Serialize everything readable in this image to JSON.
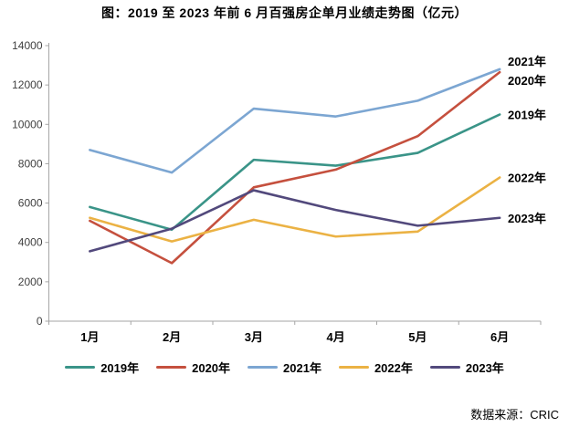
{
  "chart_data": {
    "type": "line",
    "title": "图：2019 至 2023 年前 6 月百强房企单月业绩走势图（亿元）",
    "categories": [
      "1月",
      "2月",
      "3月",
      "4月",
      "5月",
      "6月"
    ],
    "series": [
      {
        "name": "2019年",
        "color": "#3A9488",
        "values": [
          5800,
          4650,
          8200,
          7900,
          8550,
          10500
        ]
      },
      {
        "name": "2020年",
        "color": "#C5503E",
        "values": [
          5100,
          2950,
          6800,
          7700,
          9400,
          12650
        ]
      },
      {
        "name": "2021年",
        "color": "#7CA6D2",
        "values": [
          8700,
          7550,
          10800,
          10400,
          11200,
          12800
        ]
      },
      {
        "name": "2022年",
        "color": "#EBB244",
        "values": [
          5250,
          4050,
          5150,
          4300,
          4550,
          7300
        ]
      },
      {
        "name": "2023年",
        "color": "#52497C",
        "values": [
          3550,
          4700,
          6650,
          5650,
          4850,
          5250
        ]
      }
    ],
    "xlabel": "",
    "ylabel": "",
    "ylim": [
      0,
      14000
    ],
    "ytick_step": 2000,
    "grid": false,
    "legend_position": "bottom",
    "axis_color": "#A6A6A6",
    "end_labels": true
  },
  "footer": {
    "source": "数据来源：CRIC"
  }
}
